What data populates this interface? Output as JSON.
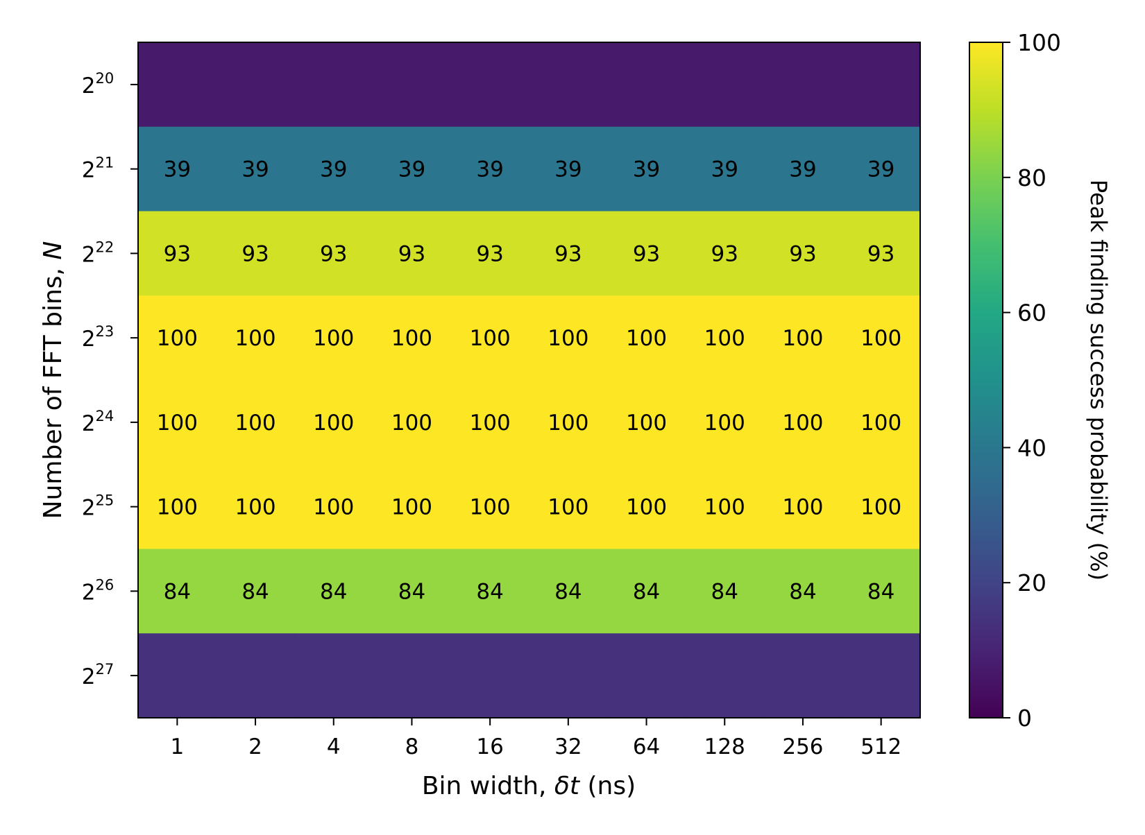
{
  "chart_data": {
    "type": "heatmap",
    "title": "",
    "xlabel": "Bin width, δt (ns)",
    "xlabel_parts": {
      "pre": "Bin width, ",
      "italic": "δt",
      "post": " (ns)"
    },
    "ylabel": "Number of FFT bins, N",
    "ylabel_parts": {
      "pre": "Number of FFT bins, ",
      "italic": "N"
    },
    "x_categories": [
      "1",
      "2",
      "4",
      "8",
      "16",
      "32",
      "64",
      "128",
      "256",
      "512"
    ],
    "y_categories": [
      {
        "base": "2",
        "exp": "20"
      },
      {
        "base": "2",
        "exp": "21"
      },
      {
        "base": "2",
        "exp": "22"
      },
      {
        "base": "2",
        "exp": "23"
      },
      {
        "base": "2",
        "exp": "24"
      },
      {
        "base": "2",
        "exp": "25"
      },
      {
        "base": "2",
        "exp": "26"
      },
      {
        "base": "2",
        "exp": "27"
      }
    ],
    "rows": [
      {
        "value": 7,
        "annotated": false
      },
      {
        "value": 39,
        "annotated": true
      },
      {
        "value": 93,
        "annotated": true
      },
      {
        "value": 100,
        "annotated": true
      },
      {
        "value": 100,
        "annotated": true
      },
      {
        "value": 100,
        "annotated": true
      },
      {
        "value": 84,
        "annotated": true
      },
      {
        "value": 14,
        "annotated": false
      }
    ],
    "colormap": "viridis",
    "vlim": [
      0,
      100
    ],
    "colorbar": {
      "label": "Peak finding success probability (%)",
      "ticks": [
        "0",
        "20",
        "40",
        "60",
        "80",
        "100"
      ]
    }
  }
}
